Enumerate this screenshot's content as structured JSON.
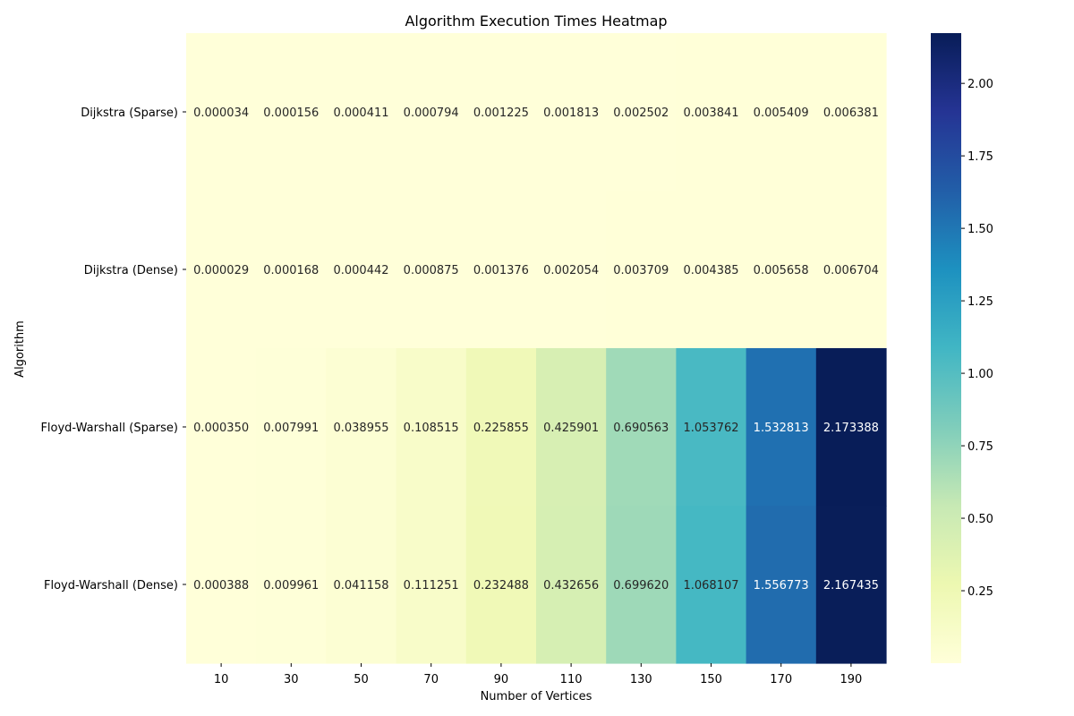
{
  "chart_data": {
    "type": "heatmap",
    "title": "Algorithm Execution Times Heatmap",
    "xlabel": "Number of Vertices",
    "ylabel": "Algorithm",
    "x": [
      "10",
      "30",
      "50",
      "70",
      "90",
      "110",
      "130",
      "150",
      "170",
      "190"
    ],
    "y": [
      "Dijkstra (Sparse)",
      "Dijkstra (Dense)",
      "Floyd-Warshall (Sparse)",
      "Floyd-Warshall (Dense)"
    ],
    "values": [
      [
        3.4e-05,
        0.000156,
        0.000411,
        0.000794,
        0.001225,
        0.001813,
        0.002502,
        0.003841,
        0.005409,
        0.006381
      ],
      [
        2.9e-05,
        0.000168,
        0.000442,
        0.000875,
        0.001376,
        0.002054,
        0.003709,
        0.004385,
        0.005658,
        0.006704
      ],
      [
        0.00035,
        0.007991,
        0.038955,
        0.108515,
        0.225855,
        0.425901,
        0.690563,
        1.053762,
        1.532813,
        2.173388
      ],
      [
        0.000388,
        0.009961,
        0.041158,
        0.111251,
        0.232488,
        0.432656,
        0.69962,
        1.068107,
        1.556773,
        2.167435
      ]
    ],
    "labels": [
      [
        "0.000034",
        "0.000156",
        "0.000411",
        "0.000794",
        "0.001225",
        "0.001813",
        "0.002502",
        "0.003841",
        "0.005409",
        "0.006381"
      ],
      [
        "0.000029",
        "0.000168",
        "0.000442",
        "0.000875",
        "0.001376",
        "0.002054",
        "0.003709",
        "0.004385",
        "0.005658",
        "0.006704"
      ],
      [
        "0.000350",
        "0.007991",
        "0.038955",
        "0.108515",
        "0.225855",
        "0.425901",
        "0.690563",
        "1.053762",
        "1.532813",
        "2.173388"
      ],
      [
        "0.000388",
        "0.009961",
        "0.041158",
        "0.111251",
        "0.232488",
        "0.432656",
        "0.699620",
        "1.068107",
        "1.556773",
        "2.167435"
      ]
    ],
    "colormap": "YlGnBu",
    "vmin": 2.9e-05,
    "vmax": 2.173388,
    "colorbar_ticks": [
      0.25,
      0.5,
      0.75,
      1.0,
      1.25,
      1.5,
      1.75,
      2.0
    ],
    "colorbar_tick_labels": [
      "0.25",
      "0.50",
      "0.75",
      "1.00",
      "1.25",
      "1.50",
      "1.75",
      "2.00"
    ],
    "grid": false,
    "colorbar_position": "right"
  }
}
